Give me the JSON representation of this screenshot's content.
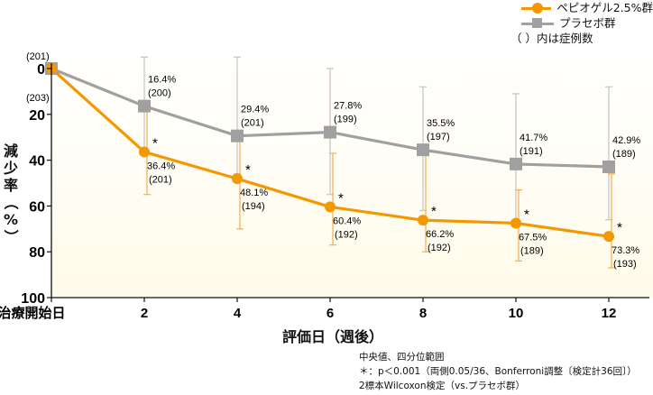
{
  "chart_data": {
    "type": "line",
    "title": "",
    "xlabel": "評価日（週後）",
    "ylabel": "減少率（%）",
    "x_tick_labels": [
      "治療開始日",
      "2",
      "4",
      "6",
      "8",
      "10",
      "12"
    ],
    "x": [
      0,
      2,
      4,
      6,
      8,
      10,
      12
    ],
    "y_tick_labels": [
      "0",
      "20",
      "40",
      "60",
      "80",
      "100"
    ],
    "ylim": [
      0,
      100
    ],
    "y_inverted": true,
    "grid": false,
    "legend_position": "top-right",
    "series": [
      {
        "name": "ペピオゲル2.5%群",
        "color": "#f39800",
        "marker": "circle",
        "values": [
          0,
          36.4,
          48.1,
          60.4,
          66.2,
          67.5,
          73.3
        ],
        "n": [
          203,
          201,
          194,
          192,
          192,
          189,
          193
        ],
        "iqr_low": [
          null,
          14,
          31,
          37,
          37,
          53,
          46
        ],
        "iqr_high": [
          null,
          55,
          70,
          77,
          80,
          84,
          87
        ],
        "significance": [
          null,
          "*",
          "*",
          "*",
          "*",
          "*",
          "*"
        ],
        "value_labels": [
          "",
          "36.4%",
          "48.1%",
          "60.4%",
          "66.2%",
          "67.5%",
          "73.3%"
        ],
        "n_labels": [
          "(203)",
          "(201)",
          "(194)",
          "(192)",
          "(192)",
          "(189)",
          "(193)"
        ]
      },
      {
        "name": "プラセボ群",
        "color": "#a0a0a0",
        "marker": "square",
        "values": [
          0,
          16.4,
          29.4,
          27.8,
          35.5,
          41.7,
          42.9
        ],
        "n": [
          201,
          200,
          201,
          199,
          197,
          191,
          189
        ],
        "iqr_low": [
          null,
          -5,
          -5,
          0,
          8,
          11,
          8
        ],
        "iqr_high": [
          null,
          35,
          46,
          55,
          62,
          66,
          66
        ],
        "value_labels": [
          "",
          "16.4%",
          "29.4%",
          "27.8%",
          "35.5%",
          "41.7%",
          "42.9%"
        ],
        "n_labels": [
          "(201)",
          "(200)",
          "(201)",
          "(199)",
          "(197)",
          "(191)",
          "(189)"
        ]
      }
    ],
    "annotations": [
      "中央値、四分位範囲",
      "＊：p＜0.001（両側0.05/36、Bonferroni調整〔検定計36回〕）",
      "2標本Wilcoxon検定（vs.プラセボ群）"
    ]
  },
  "legend": {
    "items": [
      {
        "label": "ペピオゲル2.5%群",
        "color": "#f39800"
      },
      {
        "label": "プラセボ群",
        "color": "#a0a0a0"
      }
    ],
    "note": "（ ）内は症例数"
  },
  "axes": {
    "x_title": "評価日（週後）",
    "y_title_chars": [
      "減",
      "少",
      "率",
      "（",
      "%",
      "）"
    ]
  },
  "footnotes": [
    "中央値、四分位範囲",
    "＊：p＜0.001（両側0.05/36、Bonferroni調整〔検定計36回〕）",
    "2標本Wilcoxon検定（vs.プラセボ群）"
  ],
  "colors": {
    "pepio": "#f39800",
    "pepio_err": "#f6b25a",
    "placebo": "#a0a0a0",
    "placebo_err": "#c8c8c8",
    "bg_gradient_top": "#ffffff",
    "bg_gradient_bottom": "#fffbea"
  }
}
